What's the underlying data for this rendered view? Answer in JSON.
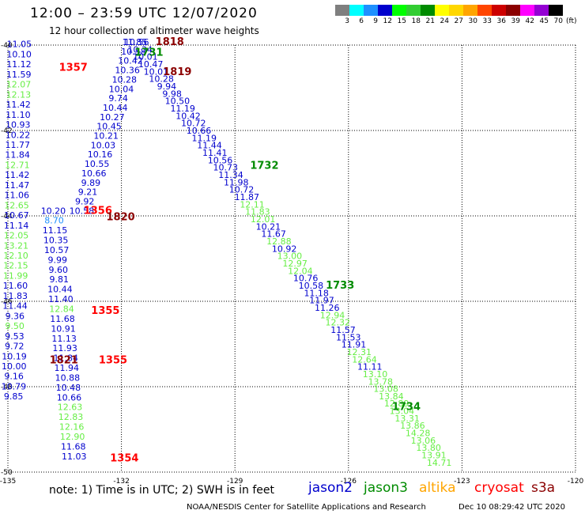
{
  "title": "12:00 – 23:59 UTC 12/07/2020",
  "subtitle": "12 hour collection of altimeter wave heights",
  "colorbar": {
    "colors": [
      "#7f7f7f",
      "#00ffff",
      "#1e90ff",
      "#0000cd",
      "#00ff00",
      "#32cd32",
      "#008b00",
      "#ffff00",
      "#ffd700",
      "#ffa500",
      "#ff4500",
      "#cd0000",
      "#8b0000",
      "#ff00ff",
      "#9400d3",
      "#000000"
    ],
    "labels": [
      "3",
      "6",
      "9",
      "12",
      "15",
      "18",
      "21",
      "24",
      "27",
      "30",
      "33",
      "36",
      "39",
      "42",
      "45",
      "70",
      "(ft)"
    ]
  },
  "axes": {
    "lon_min": -135,
    "lon_max": -120,
    "lat_min": -50,
    "lat_max": -40,
    "lon_ticks": [
      "-135",
      "-132",
      "-129",
      "-126",
      "-123",
      "-120"
    ],
    "lat_ticks": [
      "-40",
      "-42",
      "-44",
      "-46",
      "-48",
      "-50"
    ]
  },
  "colors": {
    "jason2": "#0000cd",
    "jason3": "#008b00",
    "altika": "#ffa500",
    "cryosat": "#ff0000",
    "s3a": "#8b0000",
    "light": "#66ee44",
    "cyan": "#1e90ff"
  },
  "time_labels": [
    {
      "text": "1357",
      "lon": -133.65,
      "lat": -40.6,
      "sat": "cryosat"
    },
    {
      "text": "1818",
      "lon": -131.1,
      "lat": -40.0,
      "sat": "s3a"
    },
    {
      "text": "1731",
      "lon": -131.65,
      "lat": -40.25,
      "sat": "jason3"
    },
    {
      "text": "1819",
      "lon": -130.9,
      "lat": -40.7,
      "sat": "s3a"
    },
    {
      "text": "1732",
      "lon": -128.6,
      "lat": -42.9,
      "sat": "jason3"
    },
    {
      "text": "1356",
      "lon": -133.0,
      "lat": -43.95,
      "sat": "cryosat"
    },
    {
      "text": "1820",
      "lon": -132.4,
      "lat": -44.1,
      "sat": "s3a"
    },
    {
      "text": "1733",
      "lon": -126.6,
      "lat": -45.7,
      "sat": "jason3"
    },
    {
      "text": "1355",
      "lon": -132.8,
      "lat": -46.3,
      "sat": "cryosat"
    },
    {
      "text": "1355",
      "lon": -132.6,
      "lat": -47.45,
      "sat": "cryosat"
    },
    {
      "text": "1821",
      "lon": -133.9,
      "lat": -47.45,
      "sat": "s3a"
    },
    {
      "text": "1734",
      "lon": -124.85,
      "lat": -48.55,
      "sat": "jason3"
    },
    {
      "text": "1354",
      "lon": -132.3,
      "lat": -49.75,
      "sat": "cryosat"
    }
  ],
  "tracks": [
    {
      "name": "cryosat-track",
      "lon_start": -134.7,
      "lon_end": -134.85,
      "lat_start": -40.05,
      "lat_end": -48.3,
      "values": [
        "11.05",
        "10.10",
        "11.12",
        "11.59",
        "12.07",
        "12.13",
        "11.42",
        "11.10",
        "10.93",
        "10.22",
        "11.77",
        "11.84",
        "12.71",
        "11.42",
        "11.47",
        "11.06",
        "12.65",
        "10.67",
        "11.14",
        "12.05",
        "13.21",
        "12.10",
        "12.15",
        "11.99",
        "11.60",
        "11.83",
        "11.44",
        "9.36",
        "9.50",
        "9.53",
        "9.72",
        "10.19",
        "10.00",
        "9.16",
        "10.79",
        "9.85"
      ],
      "light": [
        4,
        5,
        12,
        16,
        19,
        20,
        21,
        22,
        23,
        28
      ]
    },
    {
      "name": "cryosat-track-2",
      "lon_start": -133.8,
      "lon_end": -133.25,
      "lat_start": -43.95,
      "lat_end": -49.7,
      "values": [
        "10.20",
        "8.70",
        "11.15",
        "10.35",
        "10.57",
        "9.99",
        "9.60",
        "9.81",
        "10.44",
        "11.40",
        "12.84",
        "11.68",
        "10.91",
        "11.13",
        "11.93",
        "11.84",
        "11.94",
        "10.88",
        "10.48",
        "10.66",
        "12.63",
        "12.83",
        "12.16",
        "12.90",
        "11.68",
        "11.03"
      ],
      "light": [
        10,
        20,
        21,
        22,
        23
      ],
      "cyan": [
        1
      ]
    },
    {
      "name": "s3a-track",
      "lon_start": -131.6,
      "lon_end": -133.05,
      "lat_start": -40.0,
      "lat_end": -43.95,
      "values": [
        "10.56",
        "10.58",
        "10.42",
        "10.36",
        "10.28",
        "10.04",
        "9.74",
        "10.44",
        "10.27",
        "10.45",
        "10.21",
        "10.03",
        "10.16",
        "10.55",
        "10.66",
        "9.89",
        "9.21",
        "9.92",
        "10.58"
      ]
    },
    {
      "name": "jason3-track",
      "lon_start": -131.65,
      "lon_end": -123.6,
      "lat_start": -40.0,
      "lat_end": -49.85,
      "values": [
        "11.85",
        "10.34",
        "10.01",
        "10.47",
        "10.01",
        "10.28",
        "9.94",
        "9.98",
        "10.50",
        "11.19",
        "10.42",
        "10.72",
        "10.66",
        "11.19",
        "11.44",
        "11.41",
        "10.56",
        "10.73",
        "11.34",
        "11.98",
        "10.72",
        "11.87",
        "12.11",
        "11.83",
        "12.01",
        "10.21",
        "11.67",
        "12.88",
        "10.92",
        "13.00",
        "12.97",
        "12.04",
        "10.76",
        "10.58",
        "11.18",
        "11.97",
        "11.26",
        "12.94",
        "12.32",
        "11.57",
        "11.53",
        "11.91",
        "12.31",
        "12.64",
        "11.11",
        "13.10",
        "13.78",
        "13.08",
        "13.84",
        "12.89",
        "13.04",
        "13.31",
        "13.86",
        "14.28",
        "13.06",
        "13.80",
        "13.91",
        "14.71"
      ],
      "light": [
        22,
        23,
        24,
        27,
        29,
        30,
        31,
        37,
        38,
        42,
        43,
        45,
        46,
        47,
        48,
        49,
        50,
        51,
        52,
        53,
        54,
        55,
        56,
        57
      ]
    }
  ],
  "legend": {
    "note": "note:  1) Time is in UTC;  2) SWH is in feet",
    "sats": [
      {
        "label": "jason2",
        "key": "jason2",
        "left": 390
      },
      {
        "label": "jason3",
        "key": "jason3",
        "left": 460
      },
      {
        "label": "altika",
        "key": "altika",
        "left": 530
      },
      {
        "label": "cryosat",
        "key": "cryosat",
        "left": 600
      },
      {
        "label": "s3a",
        "key": "s3a",
        "left": 672
      }
    ]
  },
  "credit": "NOAA/NESDIS Center for Satellite Applications and Research",
  "timestamp": "Dec 10 08:29:42 UTC 2020"
}
